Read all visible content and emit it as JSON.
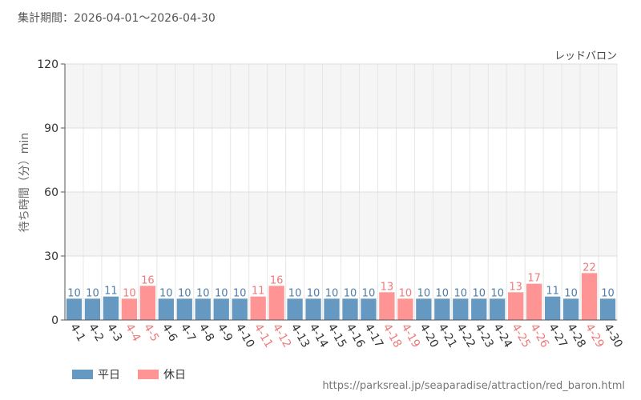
{
  "header": {
    "period": "集計期間：2026-04-01～2026-04-30"
  },
  "footer": {
    "source_url": "https://parksreal.jp/seaparadise/attraction/red_baron.html"
  },
  "colors": {
    "weekday": "#6699c2",
    "holiday": "#ff9494",
    "weekday_text": "#4f7eaa",
    "holiday_text": "#f07a7a"
  },
  "chart_data": {
    "type": "bar",
    "title": "レッドバロン",
    "ylabel": "待ち時間（分）min",
    "xlabel": "",
    "ylim": [
      0,
      120
    ],
    "yticks": [
      0,
      30,
      60,
      90,
      120
    ],
    "grid": true,
    "legend_position": "bottom-left",
    "categories": [
      "4-1",
      "4-2",
      "4-3",
      "4-4",
      "4-5",
      "4-6",
      "4-7",
      "4-8",
      "4-9",
      "4-10",
      "4-11",
      "4-12",
      "4-13",
      "4-14",
      "4-15",
      "4-16",
      "4-17",
      "4-18",
      "4-19",
      "4-20",
      "4-21",
      "4-22",
      "4-23",
      "4-24",
      "4-25",
      "4-26",
      "4-27",
      "4-28",
      "4-29",
      "4-30"
    ],
    "values": [
      10,
      10,
      11,
      10,
      16,
      10,
      10,
      10,
      10,
      10,
      11,
      16,
      10,
      10,
      10,
      10,
      10,
      13,
      10,
      10,
      10,
      10,
      10,
      10,
      13,
      17,
      11,
      10,
      22,
      10
    ],
    "day_type": [
      "weekday",
      "weekday",
      "weekday",
      "holiday",
      "holiday",
      "weekday",
      "weekday",
      "weekday",
      "weekday",
      "weekday",
      "holiday",
      "holiday",
      "weekday",
      "weekday",
      "weekday",
      "weekday",
      "weekday",
      "holiday",
      "holiday",
      "weekday",
      "weekday",
      "weekday",
      "weekday",
      "weekday",
      "holiday",
      "holiday",
      "weekday",
      "weekday",
      "holiday",
      "weekday"
    ],
    "legend": [
      {
        "key": "weekday",
        "label": "平日"
      },
      {
        "key": "holiday",
        "label": "休日"
      }
    ]
  }
}
